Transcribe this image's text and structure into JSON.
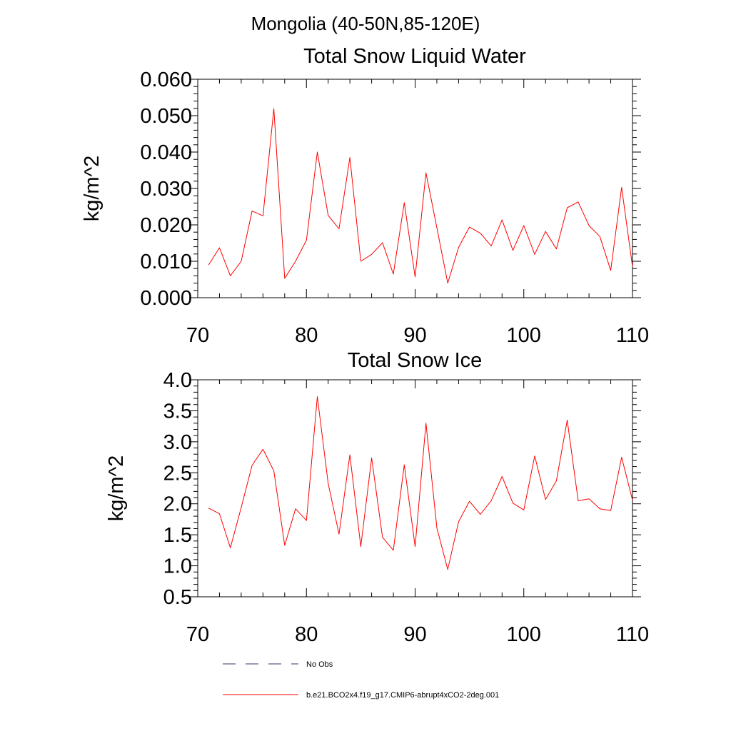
{
  "figure": {
    "title": "Mongolia (40-50N,85-120E)"
  },
  "legend": {
    "entries": [
      {
        "label": "No Obs",
        "style": "dashed",
        "color": "#333366"
      },
      {
        "label": "b.e21.BCO2x4.f19_g17.CMIP6-abrupt4xCO2-2deg.001",
        "style": "solid",
        "color": "#ff0000"
      }
    ]
  },
  "chart_data": [
    {
      "type": "line",
      "title": "Total Snow Liquid Water",
      "xlabel": "",
      "ylabel": "kg/m^2",
      "xlim": [
        70,
        110
      ],
      "ylim": [
        0.0,
        0.06
      ],
      "xticks": [
        "70",
        "80",
        "90",
        "100",
        "110"
      ],
      "yticks": [
        "0.000",
        "0.010",
        "0.020",
        "0.030",
        "0.040",
        "0.050",
        "0.060"
      ],
      "grid": false,
      "series": [
        {
          "color": "#ff0000",
          "x": [
            71,
            72,
            73,
            74,
            75,
            76,
            77,
            78,
            79,
            80,
            81,
            82,
            83,
            84,
            85,
            86,
            87,
            88,
            89,
            90,
            91,
            92,
            93,
            94,
            95,
            96,
            97,
            98,
            99,
            100,
            101,
            102,
            103,
            104,
            105,
            106,
            107,
            108,
            109,
            110
          ],
          "values": [
            0.009,
            0.0137,
            0.006,
            0.01,
            0.0238,
            0.0225,
            0.0519,
            0.0053,
            0.01,
            0.0158,
            0.04,
            0.0226,
            0.0189,
            0.0385,
            0.01,
            0.0119,
            0.0151,
            0.0065,
            0.0261,
            0.0057,
            0.0343,
            0.0192,
            0.004,
            0.0138,
            0.0194,
            0.0177,
            0.0142,
            0.0214,
            0.013,
            0.0198,
            0.0119,
            0.0182,
            0.0134,
            0.0247,
            0.0263,
            0.0198,
            0.0168,
            0.0075,
            0.0303,
            0.0085
          ]
        }
      ]
    },
    {
      "type": "line",
      "title": "Total Snow Ice",
      "xlabel": "",
      "ylabel": "kg/m^2",
      "xlim": [
        70,
        110
      ],
      "ylim": [
        0.5,
        4.0
      ],
      "xticks": [
        "70",
        "80",
        "90",
        "100",
        "110"
      ],
      "yticks": [
        "0.5",
        "1.0",
        "1.5",
        "2.0",
        "2.5",
        "3.0",
        "3.5",
        "4.0"
      ],
      "grid": false,
      "series": [
        {
          "color": "#ff0000",
          "x": [
            71,
            72,
            73,
            74,
            75,
            76,
            77,
            78,
            79,
            80,
            81,
            82,
            83,
            84,
            85,
            86,
            87,
            88,
            89,
            90,
            91,
            92,
            93,
            94,
            95,
            96,
            97,
            98,
            99,
            100,
            101,
            102,
            103,
            104,
            105,
            106,
            107,
            108,
            109,
            110
          ],
          "values": [
            1.93,
            1.84,
            1.29,
            1.94,
            2.62,
            2.88,
            2.53,
            1.33,
            1.92,
            1.73,
            3.73,
            2.33,
            1.51,
            2.79,
            1.31,
            2.74,
            1.46,
            1.25,
            2.63,
            1.31,
            3.3,
            1.61,
            0.94,
            1.71,
            2.04,
            1.83,
            2.05,
            2.44,
            2.01,
            1.9,
            2.77,
            2.07,
            2.37,
            3.35,
            2.05,
            2.08,
            1.92,
            1.89,
            2.75,
            2.06
          ]
        }
      ]
    }
  ]
}
